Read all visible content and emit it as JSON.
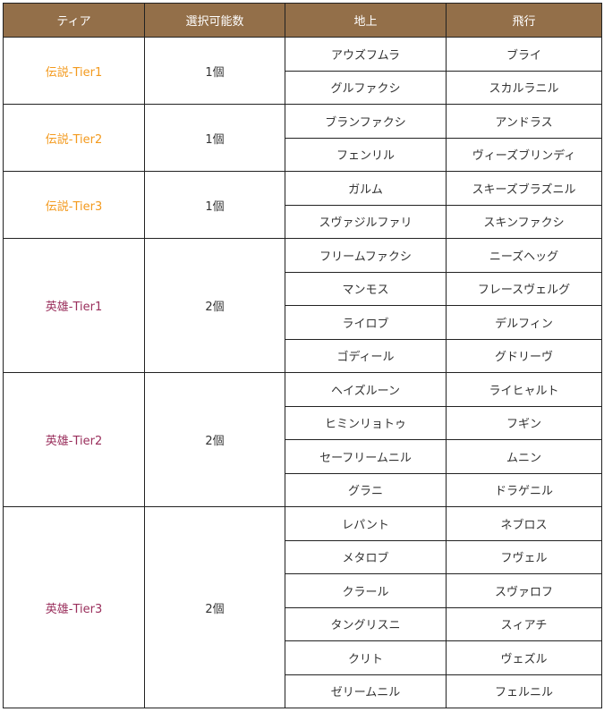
{
  "colors": {
    "header_bg": "#936f49",
    "legend_tier": "#f39a1e",
    "hero_tier": "#9a2f5c"
  },
  "headers": [
    "ティア",
    "選択可能数",
    "地上",
    "飛行"
  ],
  "groups": [
    {
      "tier": "伝説-Tier1",
      "rank": "legend",
      "count": "1個",
      "rows": [
        [
          "アウズフムラ",
          "ブライ"
        ],
        [
          "グルファクシ",
          "スカルラニル"
        ]
      ]
    },
    {
      "tier": "伝説-Tier2",
      "rank": "legend",
      "count": "1個",
      "rows": [
        [
          "ブランファクシ",
          "アンドラス"
        ],
        [
          "フェンリル",
          "ヴィーズブリンディ"
        ]
      ]
    },
    {
      "tier": "伝説-Tier3",
      "rank": "legend",
      "count": "1個",
      "rows": [
        [
          "ガルム",
          "スキーズブラズニル"
        ],
        [
          "スヴァジルファリ",
          "スキンファクシ"
        ]
      ]
    },
    {
      "tier": "英雄-Tier1",
      "rank": "hero",
      "count": "2個",
      "rows": [
        [
          "フリームファクシ",
          "ニーズヘッグ"
        ],
        [
          "マンモス",
          "フレースヴェルグ"
        ],
        [
          "ライロブ",
          "デルフィン"
        ],
        [
          "ゴディール",
          "グドリーヴ"
        ]
      ]
    },
    {
      "tier": "英雄-Tier2",
      "rank": "hero",
      "count": "2個",
      "rows": [
        [
          "ヘイズルーン",
          "ライヒャルト"
        ],
        [
          "ヒミンリョトゥ",
          "フギン"
        ],
        [
          "セーフリームニル",
          "ムニン"
        ],
        [
          "グラニ",
          "ドラゲニル"
        ]
      ]
    },
    {
      "tier": "英雄-Tier3",
      "rank": "hero",
      "count": "2個",
      "rows": [
        [
          "レパント",
          "ネブロス"
        ],
        [
          "メタロブ",
          "フヴェル"
        ],
        [
          "クラール",
          "スヴァロフ"
        ],
        [
          "タングリスニ",
          "スィアチ"
        ],
        [
          "クリト",
          "ヴェズル"
        ],
        [
          "ゼリームニル",
          "フェルニル"
        ]
      ]
    }
  ]
}
